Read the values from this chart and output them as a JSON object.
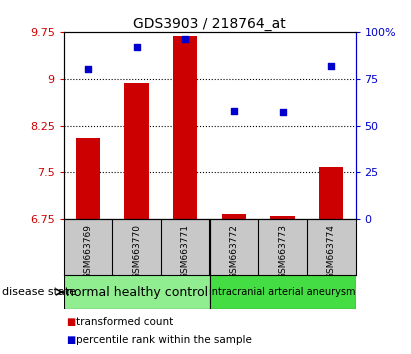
{
  "title": "GDS3903 / 218764_at",
  "samples": [
    "GSM663769",
    "GSM663770",
    "GSM663771",
    "GSM663772",
    "GSM663773",
    "GSM663774"
  ],
  "bar_values": [
    8.05,
    8.93,
    9.68,
    6.83,
    6.8,
    7.58
  ],
  "scatter_values": [
    80,
    92,
    96,
    58,
    57,
    82
  ],
  "ylim_left": [
    6.75,
    9.75
  ],
  "ylim_right": [
    0,
    100
  ],
  "yticks_left": [
    6.75,
    7.5,
    8.25,
    9.0,
    9.75
  ],
  "yticks_right": [
    0,
    25,
    50,
    75,
    100
  ],
  "ytick_labels_left": [
    "6.75",
    "7.5",
    "8.25",
    "9",
    "9.75"
  ],
  "ytick_labels_right": [
    "0",
    "25",
    "50",
    "75",
    "100%"
  ],
  "bar_color": "#cc0000",
  "scatter_color": "#0000cc",
  "bar_bottom": 6.75,
  "groups": [
    {
      "label": "normal healthy control",
      "indices": [
        0,
        1,
        2
      ],
      "color": "#90ee90",
      "font_size": 9
    },
    {
      "label": "intracranial arterial aneurysm",
      "indices": [
        3,
        4,
        5
      ],
      "color": "#44dd44",
      "font_size": 7
    }
  ],
  "disease_state_label": "disease state",
  "legend_bar_label": "transformed count",
  "legend_scatter_label": "percentile rank within the sample",
  "bar_color_label": "#cc0000",
  "scatter_color_label": "#0000cc",
  "background_color": "#ffffff",
  "tick_area_bg": "#c8c8c8",
  "divider_color": "#888888"
}
